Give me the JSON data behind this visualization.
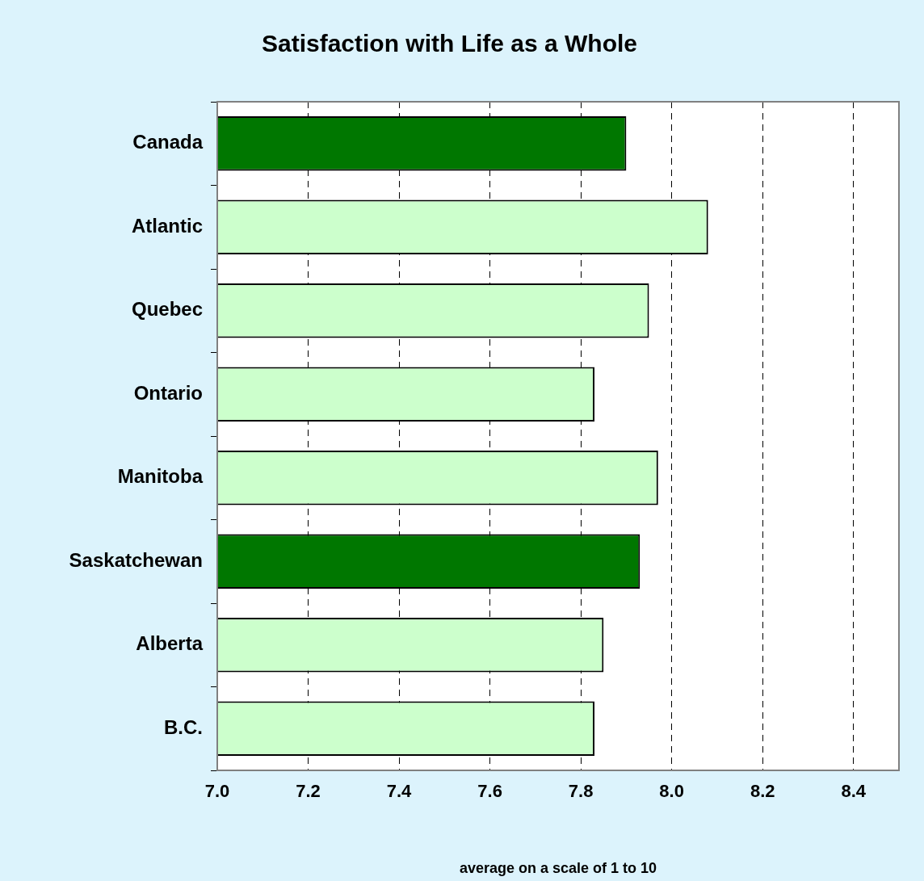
{
  "chart_data": {
    "type": "bar",
    "orientation": "horizontal",
    "title": "Satisfaction with Life as a Whole",
    "xlabel": "average on a scale of 1 to 10",
    "categories": [
      "Canada",
      "Atlantic",
      "Quebec",
      "Ontario",
      "Manitoba",
      "Saskatchewan",
      "Alberta",
      "B.C."
    ],
    "values": [
      7.9,
      8.08,
      7.95,
      7.83,
      7.97,
      7.93,
      7.85,
      7.83
    ],
    "colors": [
      "#007700",
      "#ccffcc",
      "#ccffcc",
      "#ccffcc",
      "#ccffcc",
      "#007700",
      "#ccffcc",
      "#ccffcc"
    ],
    "xlim": [
      7.0,
      8.5
    ],
    "xticks": [
      {
        "value": 7.0,
        "label": "7.0"
      },
      {
        "value": 7.2,
        "label": "7.2"
      },
      {
        "value": 7.4,
        "label": "7.4"
      },
      {
        "value": 7.6,
        "label": "7.6"
      },
      {
        "value": 7.8,
        "label": "7.8"
      },
      {
        "value": 8.0,
        "label": "8.0"
      },
      {
        "value": 8.2,
        "label": "8.2"
      },
      {
        "value": 8.4,
        "label": "8.4"
      }
    ],
    "grid": "x",
    "legend": false
  }
}
